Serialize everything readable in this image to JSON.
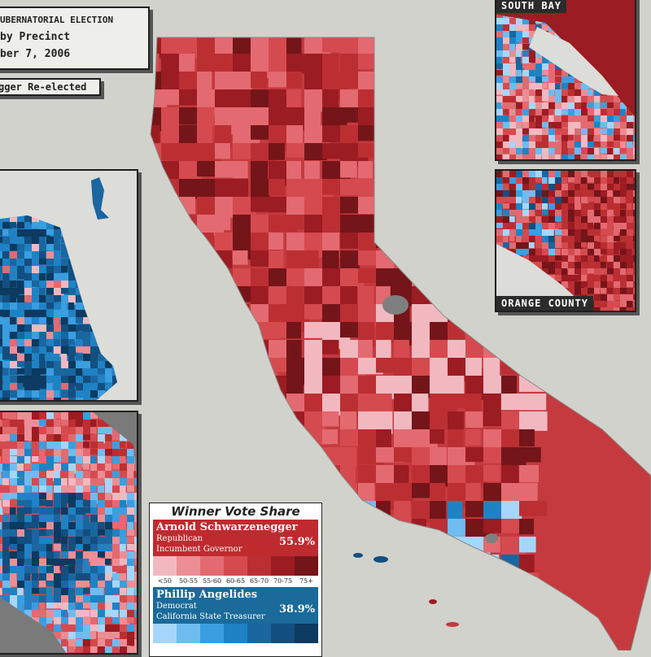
{
  "title": {
    "line1": "UBERNATORIAL ELECTION",
    "line2": "by Precinct",
    "line3": "ber 7, 2006"
  },
  "winner_banner": "gger Re-elected",
  "insets": {
    "south_bay": "SOUTH BAY",
    "orange_county": "ORANGE COUNTY"
  },
  "legend": {
    "title": "Winner Vote Share",
    "republican": {
      "name": "Arnold Schwarzenegger",
      "party": "Republican",
      "role": "Incumbent Governor",
      "share": "55.9%",
      "colors": [
        "#f2b8c0",
        "#ec8e95",
        "#e36a70",
        "#d54a4f",
        "#bb2f33",
        "#9b1c22",
        "#741519"
      ]
    },
    "ticks": [
      "<50",
      "50-55",
      "55-60",
      "60-65",
      "65-70",
      "70-75",
      "75+"
    ],
    "democrat": {
      "name": "Phillip Angelides",
      "party": "Democrat",
      "role": "California State Treasurer",
      "share": "38.9%",
      "colors": [
        "#a6d6fb",
        "#6fbcf0",
        "#3a9ee0",
        "#1f82c4",
        "#1a66a0",
        "#124f80",
        "#0c3a60"
      ]
    }
  },
  "colors": {
    "background": "#d2d2cc",
    "no_data": "#888888"
  }
}
